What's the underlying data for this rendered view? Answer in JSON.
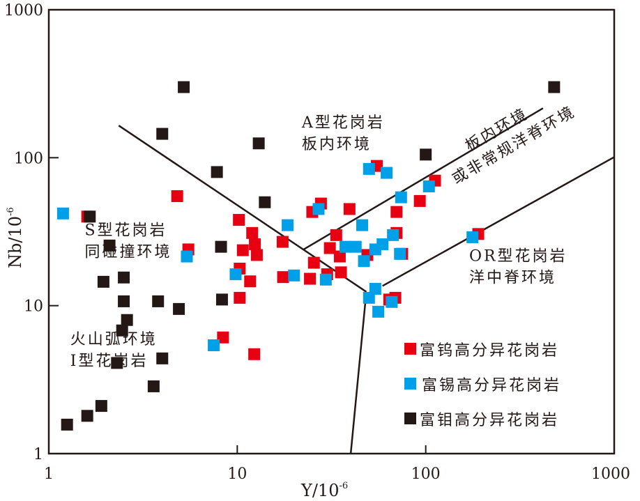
{
  "chart_data": {
    "type": "scatter",
    "title": "",
    "xlabel": "Y/10",
    "xlabel_exp": "-6",
    "ylabel": "Nb/10",
    "ylabel_exp": "-6",
    "xscale": "log",
    "yscale": "log",
    "xlim": [
      1,
      1000
    ],
    "ylim": [
      1,
      1000
    ],
    "x_ticks": [
      {
        "v": 1,
        "label": "1"
      },
      {
        "v": 10,
        "label": "10"
      },
      {
        "v": 100,
        "label": "100"
      },
      {
        "v": 1000,
        "label": "1000"
      }
    ],
    "y_ticks": [
      {
        "v": 1,
        "label": "1"
      },
      {
        "v": 10,
        "label": "10"
      },
      {
        "v": 100,
        "label": "100"
      },
      {
        "v": 1000,
        "label": "1000"
      }
    ],
    "legend_position": "bottom-right",
    "boundary_lines": [
      {
        "name": "vag-syn-colg-wpg-boundary",
        "points": [
          [
            2.35,
            165
          ],
          [
            48.4,
            12.4
          ]
        ]
      },
      {
        "name": "vag-orog-boundary",
        "points": [
          [
            48.4,
            12.4
          ],
          [
            40,
            1
          ]
        ]
      },
      {
        "name": "wpg-upper-boundary",
        "points": [
          [
            22.5,
            24
          ],
          [
            419,
            216
          ]
        ]
      },
      {
        "name": "org-boundary",
        "points": [
          [
            59,
            13.6
          ],
          [
            1000,
            101
          ]
        ]
      }
    ],
    "region_labels": [
      {
        "lines": [
          "A型花岗岩",
          "板内环境"
        ],
        "at": [
          22,
          160
        ]
      },
      {
        "lines": [
          "板内环境",
          "或非常规洋脊环境"
        ],
        "at": [
          170,
          110
        ],
        "rotate": -30
      },
      {
        "lines": [
          "S型花岗岩",
          "同碰撞环境"
        ],
        "at": [
          1.55,
          30
        ]
      },
      {
        "lines": [
          "OR型花岗岩",
          "洋中脊环境"
        ],
        "at": [
          170,
          20
        ]
      },
      {
        "lines": [
          "火山弧环境",
          "I型花岗岩"
        ],
        "at": [
          1.3,
          5.5
        ]
      }
    ],
    "series": [
      {
        "name": "富钨高分异花岗岩",
        "color": "#e60012",
        "points": [
          [
            4.8,
            55
          ],
          [
            1.6,
            40
          ],
          [
            5.5,
            24
          ],
          [
            10.2,
            38
          ],
          [
            10.7,
            23.7
          ],
          [
            12,
            31
          ],
          [
            12.4,
            26
          ],
          [
            12.7,
            22
          ],
          [
            17.4,
            27
          ],
          [
            10.3,
            17.8
          ],
          [
            11.7,
            14.6
          ],
          [
            10.3,
            11.3
          ],
          [
            8.4,
            6.1
          ],
          [
            12.3,
            4.7
          ],
          [
            17.5,
            15.6
          ],
          [
            25,
            43
          ],
          [
            27.8,
            49
          ],
          [
            39.4,
            45
          ],
          [
            33.5,
            30
          ],
          [
            25.5,
            19.5
          ],
          [
            31,
            24.5
          ],
          [
            35,
            21.5
          ],
          [
            35.5,
            16.8
          ],
          [
            24.3,
            15.2
          ],
          [
            30,
            16.3
          ],
          [
            49,
            22
          ],
          [
            55,
            88
          ],
          [
            112,
            70
          ],
          [
            70,
            43
          ],
          [
            70,
            31
          ],
          [
            75,
            22.4
          ],
          [
            93,
            51
          ],
          [
            64,
            11
          ],
          [
            69,
            11.3
          ],
          [
            190,
            30.5
          ]
        ]
      },
      {
        "name": "富锡高分异花岗岩",
        "color": "#00a0e9",
        "points": [
          [
            1.19,
            42
          ],
          [
            5.4,
            21.5
          ],
          [
            18.5,
            35
          ],
          [
            9.8,
            16.3
          ],
          [
            20,
            16
          ],
          [
            29.5,
            15
          ],
          [
            27,
            45
          ],
          [
            50,
            84
          ],
          [
            62,
            79
          ],
          [
            104,
            64
          ],
          [
            74,
            54
          ],
          [
            46,
            35
          ],
          [
            37.5,
            25
          ],
          [
            42.5,
            25
          ],
          [
            54,
            24
          ],
          [
            59,
            26
          ],
          [
            67,
            30
          ],
          [
            47,
            20
          ],
          [
            54,
            13
          ],
          [
            50,
            11.3
          ],
          [
            56,
            9.1
          ],
          [
            66,
            10.6
          ],
          [
            73,
            22.4
          ],
          [
            177,
            29
          ],
          [
            7.5,
            5.4
          ]
        ]
      },
      {
        "name": "富钼高分异花岗岩",
        "color": "#231815",
        "points": [
          [
            5.2,
            300
          ],
          [
            4.0,
            145
          ],
          [
            13,
            125
          ],
          [
            7.8,
            80
          ],
          [
            100,
            105
          ],
          [
            480,
            300
          ],
          [
            14,
            50
          ],
          [
            8.2,
            25
          ],
          [
            1.65,
            40
          ],
          [
            2.1,
            25.5
          ],
          [
            1.95,
            14.5
          ],
          [
            2.5,
            15.5
          ],
          [
            2.5,
            10.7
          ],
          [
            2.6,
            8
          ],
          [
            2.45,
            6.8
          ],
          [
            2.3,
            4.1
          ],
          [
            4.0,
            4.4
          ],
          [
            4.9,
            9.5
          ],
          [
            3.8,
            10.7
          ],
          [
            8.3,
            11
          ],
          [
            3.6,
            2.85
          ],
          [
            1.9,
            2.1
          ],
          [
            1.6,
            1.8
          ],
          [
            1.25,
            1.57
          ]
        ]
      }
    ]
  }
}
